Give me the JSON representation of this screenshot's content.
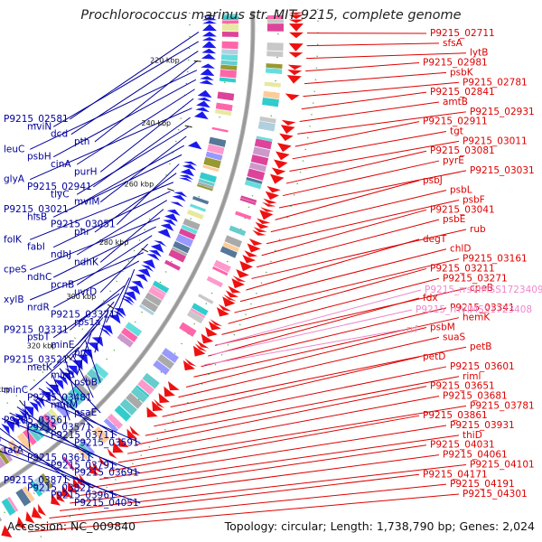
{
  "title": "Prochlorococcus marinus str. MIT 9215, complete genome",
  "footer": {
    "accession": "Accession: NC_009840",
    "summary": "Topology: circular; Length: 1,738,790 bp; Genes: 2,024"
  },
  "colors": {
    "forward": "#ee1111",
    "reverse": "#1a1aee",
    "rna": "#ff88cc",
    "backbone": "#999999",
    "label_forward": "#dd0000",
    "label_reverse": "#000099",
    "label_rna": "#ee88cc"
  },
  "ticks": [
    "220 kbp",
    "240 kbp",
    "260 kbp",
    "280 kbp",
    "300 kbp",
    "320 kbp",
    "340 kbp",
    "360 kbp"
  ],
  "forward_labels": [
    "P9215_02711",
    "sfsA",
    "lytB",
    "P9215_02981",
    "psbK",
    "P9215_02781",
    "P9215_02841",
    "amtB",
    "P9215_02931",
    "P9215_02911",
    "tgt",
    "P9215_03011",
    "P9215_03081",
    "pyrE",
    "P9215_03031",
    "psbJ",
    "psbL",
    "psbF",
    "P9215_03041",
    "psbE",
    "rub",
    "degT",
    "chlD",
    "P9215_03161",
    "P9215_03211",
    "P9215_03271",
    "cpeB",
    "fdx",
    "P9215_03341",
    "hemK",
    "psbM",
    "suaS",
    "petB",
    "petD",
    "P9215_03601",
    "riml",
    "P9215_03651",
    "P9215_03681",
    "P9215_03781",
    "P9215_03861",
    "P9215_03931",
    "thiD",
    "P9215_04031",
    "P9215_04061",
    "P9215_04101",
    "P9215_04171",
    "P9215_04191",
    "P9215_04301"
  ],
  "rna_labels": [
    "P9215_rrsVIMSS1723409",
    "P9215_rrlVIMSS1723408",
    "rrf"
  ],
  "reverse_labels": [
    "P9215_02581",
    "mviN",
    "dcd",
    "pth",
    "leuC",
    "psbH",
    "cinA",
    "purH",
    "glyA",
    "P9215_02941",
    "tlyC",
    "mviM",
    "P9215_03021",
    "hisB",
    "P9215_03051",
    "phr",
    "folK",
    "fabI",
    "ndhJ",
    "ndhK",
    "cpeS",
    "ndhC",
    "pcnB",
    "uvrD",
    "xylB",
    "nrdR",
    "P9215_03321",
    "rps1a",
    "P9215_03331",
    "psbT",
    "minE",
    "prc",
    "P9215_03521",
    "metK",
    "mind",
    "psbB",
    "minC",
    "P9215_03481",
    "mutM",
    "psaE",
    "P9215_03561",
    "P9215_03571",
    "P9215_03711",
    "P9215_03591",
    "tatA",
    "P9215_03611",
    "P9215_03791",
    "P9215_03691",
    "P9215_03871",
    "P9215_03821",
    "P9215_03961",
    "P9215_04051"
  ]
}
